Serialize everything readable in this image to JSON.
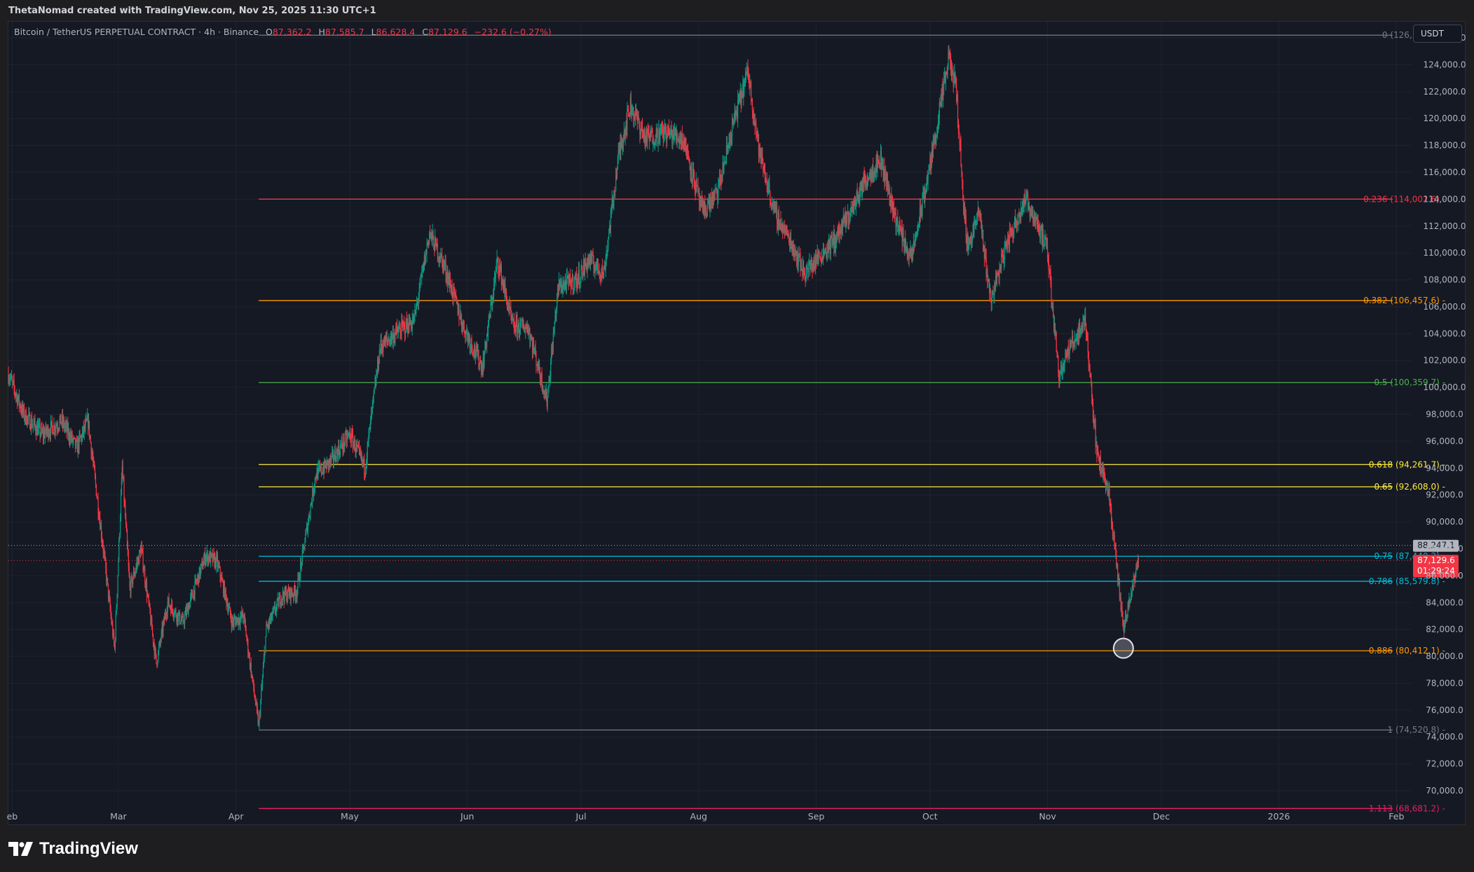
{
  "header": {
    "author_line": "ThetaNomad created with TradingView.com, Nov 25, 2025 11:30 UTC+1"
  },
  "legend": {
    "symbol": "Bitcoin / TetherUS PERPETUAL CONTRACT · 4h · Binance",
    "open_label": "O",
    "open": "87,362.2",
    "high_label": "H",
    "high": "87,585.7",
    "low_label": "L",
    "low": "86,628.4",
    "close_label": "C",
    "close": "87,129.6",
    "change": "−232.6 (−0.27%)"
  },
  "currency_button": "USDT",
  "brand": {
    "name": "TradingView"
  },
  "colors": {
    "background": "#151924",
    "up_candle": "#089981",
    "down_candle": "#f23645",
    "price_badge": "#f23645"
  },
  "chart_data": {
    "type": "candlestick",
    "timeframe": "4h",
    "y_range": [
      67500,
      127200
    ],
    "y_ticks": [
      70000,
      72000,
      74000,
      76000,
      78000,
      80000,
      82000,
      84000,
      86000,
      88000,
      90000,
      92000,
      94000,
      96000,
      98000,
      100000,
      102000,
      104000,
      106000,
      108000,
      110000,
      112000,
      114000,
      116000,
      118000,
      120000,
      122000,
      124000,
      126000
    ],
    "y_tick_labels": [
      "70,000.0",
      "72,000.0",
      "74,000.0",
      "76,000.0",
      "78,000.0",
      "80,000.0",
      "82,000.0",
      "84,000.0",
      "86,000.0",
      "88,000.0",
      "90,000.0",
      "92,000.0",
      "94,000.0",
      "96,000.0",
      "98,000.0",
      "100,000.0",
      "102,000.0",
      "104,000.0",
      "106,000.0",
      "108,000.0",
      "110,000.0",
      "112,000.0",
      "114,000.0",
      "116,000.0",
      "118,000.0",
      "120,000.0",
      "122,000.0",
      "124,000.0",
      "126,000.0"
    ],
    "x_range": [
      "2025-01-31",
      "2026-02-05"
    ],
    "x_ticks": [
      {
        "label": "eb",
        "date": "2025-02-01"
      },
      {
        "label": "Mar",
        "date": "2025-03-01"
      },
      {
        "label": "Apr",
        "date": "2025-04-01"
      },
      {
        "label": "May",
        "date": "2025-05-01"
      },
      {
        "label": "Jun",
        "date": "2025-06-01"
      },
      {
        "label": "Jul",
        "date": "2025-07-01"
      },
      {
        "label": "Aug",
        "date": "2025-08-01"
      },
      {
        "label": "Sep",
        "date": "2025-09-01"
      },
      {
        "label": "Oct",
        "date": "2025-10-01"
      },
      {
        "label": "Nov",
        "date": "2025-11-01"
      },
      {
        "label": "Dec",
        "date": "2025-12-01"
      },
      {
        "label": "2026",
        "date": "2026-01-01"
      },
      {
        "label": "Feb",
        "date": "2026-02-01"
      }
    ],
    "price_path": [
      [
        "2025-01-31",
        101000
      ],
      [
        "2025-02-04",
        98000
      ],
      [
        "2025-02-09",
        96500
      ],
      [
        "2025-02-14",
        97500
      ],
      [
        "2025-02-18",
        95500
      ],
      [
        "2025-02-21",
        97500
      ],
      [
        "2025-02-25",
        88000
      ],
      [
        "2025-02-28",
        80500
      ],
      [
        "2025-03-02",
        94000
      ],
      [
        "2025-03-04",
        85000
      ],
      [
        "2025-03-07",
        88000
      ],
      [
        "2025-03-11",
        79500
      ],
      [
        "2025-03-14",
        84000
      ],
      [
        "2025-03-18",
        82500
      ],
      [
        "2025-03-24",
        87500
      ],
      [
        "2025-03-27",
        87000
      ],
      [
        "2025-03-31",
        82500
      ],
      [
        "2025-04-03",
        83000
      ],
      [
        "2025-04-07",
        74800
      ],
      [
        "2025-04-09",
        82000
      ],
      [
        "2025-04-13",
        84500
      ],
      [
        "2025-04-17",
        84800
      ],
      [
        "2025-04-22",
        93500
      ],
      [
        "2025-04-26",
        94500
      ],
      [
        "2025-05-01",
        96500
      ],
      [
        "2025-05-05",
        94000
      ],
      [
        "2025-05-09",
        103000
      ],
      [
        "2025-05-13",
        104000
      ],
      [
        "2025-05-18",
        105000
      ],
      [
        "2025-05-22",
        111500
      ],
      [
        "2025-05-26",
        109000
      ],
      [
        "2025-05-31",
        104500
      ],
      [
        "2025-06-05",
        101500
      ],
      [
        "2025-06-09",
        109500
      ],
      [
        "2025-06-13",
        104500
      ],
      [
        "2025-06-17",
        104500
      ],
      [
        "2025-06-22",
        99000
      ],
      [
        "2025-06-25",
        107500
      ],
      [
        "2025-06-30",
        108000
      ],
      [
        "2025-07-03",
        109500
      ],
      [
        "2025-07-07",
        108500
      ],
      [
        "2025-07-11",
        117500
      ],
      [
        "2025-07-14",
        121000
      ],
      [
        "2025-07-18",
        118500
      ],
      [
        "2025-07-23",
        119000
      ],
      [
        "2025-07-28",
        118500
      ],
      [
        "2025-08-02",
        113000
      ],
      [
        "2025-08-06",
        114500
      ],
      [
        "2025-08-10",
        119500
      ],
      [
        "2025-08-14",
        123500
      ],
      [
        "2025-08-17",
        117500
      ],
      [
        "2025-08-21",
        113000
      ],
      [
        "2025-08-25",
        111000
      ],
      [
        "2025-08-29",
        108500
      ],
      [
        "2025-09-01",
        109500
      ],
      [
        "2025-09-06",
        111000
      ],
      [
        "2025-09-10",
        113000
      ],
      [
        "2025-09-14",
        115500
      ],
      [
        "2025-09-18",
        117000
      ],
      [
        "2025-09-22",
        112500
      ],
      [
        "2025-09-26",
        109500
      ],
      [
        "2025-10-01",
        116500
      ],
      [
        "2025-10-06",
        124500
      ],
      [
        "2025-10-08",
        122000
      ],
      [
        "2025-10-10",
        113000
      ],
      [
        "2025-10-11",
        110500
      ],
      [
        "2025-10-14",
        113000
      ],
      [
        "2025-10-17",
        106500
      ],
      [
        "2025-10-21",
        110500
      ],
      [
        "2025-10-26",
        114000
      ],
      [
        "2025-10-29",
        112500
      ],
      [
        "2025-11-01",
        110000
      ],
      [
        "2025-11-04",
        101000
      ],
      [
        "2025-11-07",
        103000
      ],
      [
        "2025-11-11",
        105000
      ],
      [
        "2025-11-14",
        95000
      ],
      [
        "2025-11-17",
        92500
      ],
      [
        "2025-11-21",
        82000
      ],
      [
        "2025-11-23",
        84500
      ],
      [
        "2025-11-25",
        87129.6
      ]
    ],
    "fib_levels": [
      {
        "label": "0 (126,198.5)",
        "value": 126198.5,
        "color": "#787b86"
      },
      {
        "label": "0.236 (114,002.6)",
        "value": 114002.6,
        "color": "#f23645"
      },
      {
        "label": "0.382 (106,457.6)",
        "value": 106457.6,
        "color": "#ff9800"
      },
      {
        "label": "0.5 (100,359.7)",
        "value": 100359.7,
        "color": "#4caf50"
      },
      {
        "label": "0.618 (94,261.7)",
        "value": 94261.7,
        "color": "#ffeb3b"
      },
      {
        "label": "0.65 (92,608.0)",
        "value": 92608.0,
        "color": "#ffeb3b"
      },
      {
        "label": "0.75 (87,440.2)",
        "value": 87440.2,
        "color": "#00bcd4"
      },
      {
        "label": "0.786 (85,579.8)",
        "value": 85579.8,
        "color": "#00bcd4"
      },
      {
        "label": "0.886 (80,412.1)",
        "value": 80412.1,
        "color": "#ff9800"
      },
      {
        "label": "1 (74,520.8)",
        "value": 74520.8,
        "color": "#787b86"
      },
      {
        "label": "1.113 (68,681.2)",
        "value": 68681.2,
        "color": "#e91e63"
      }
    ],
    "fib_start_date": "2025-04-07",
    "fib_end_date": "2026-01-31",
    "price_lines": [
      {
        "label": "88,247.1",
        "value": 88247.1,
        "color": "#b2b5be",
        "text_color": "#131722"
      },
      {
        "label": "87,129.6",
        "value": 87129.6,
        "color": "#f23645",
        "text_color": "#ffffff",
        "countdown": "01:29:24"
      }
    ],
    "marker": {
      "date": "2025-11-21",
      "value": 80600
    }
  }
}
